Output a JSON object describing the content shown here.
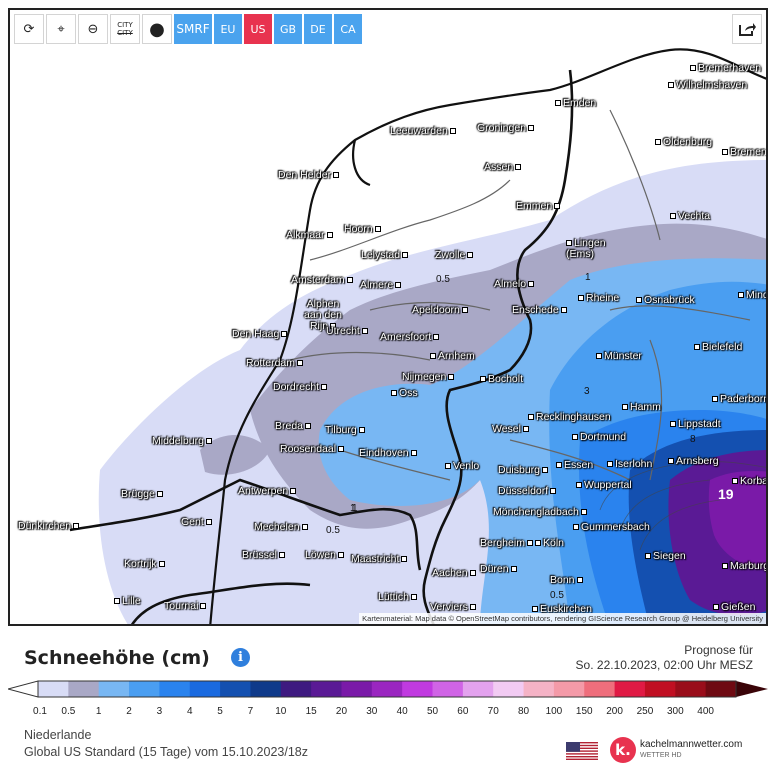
{
  "toolbar": {
    "model_label": "SMRF",
    "regions": [
      {
        "label": "EU",
        "active": false
      },
      {
        "label": "US",
        "active": true
      },
      {
        "label": "GB",
        "active": false
      },
      {
        "label": "DE",
        "active": false
      },
      {
        "label": "CA",
        "active": false
      }
    ],
    "city_toggle_label": "CITY",
    "icons": [
      "refresh-icon",
      "location-pin-icon",
      "zoom-out-icon",
      "city-toggle-icon",
      "balloon-icon",
      "share-icon"
    ]
  },
  "map": {
    "attribution": "Kartenmaterial: Map data © OpenStreetMap contributors, rendering GIScience Research Group @ Heidelberg University",
    "cities": [
      "Bremerhaven",
      "Wilhelmshaven",
      "Emden",
      "Leeuwarden",
      "Groningen",
      "Oldenburg",
      "Bremen",
      "Den Helder",
      "Assen",
      "Emmen",
      "Vechta",
      "Alkmaar",
      "Hoorn",
      "Lelystad",
      "Zwolle",
      "Lingen (Ems)",
      "Amsterdam",
      "Almere",
      "Almelo",
      "Rheine",
      "Osnabrück",
      "Minden",
      "Alphen aan den Rijn",
      "Apeldoorn",
      "Enschede",
      "Den Haag",
      "Utrecht",
      "Amersfoort",
      "Bielefeld",
      "Rotterdam",
      "Arnhem",
      "Münster",
      "Dordrecht",
      "Nijmegen",
      "Bocholt",
      "Oss",
      "Recklinghausen",
      "Hamm",
      "Paderborn",
      "Breda",
      "Tilburg",
      "Wesel",
      "Dortmund",
      "Lippstadt",
      "Middelburg",
      "Roosendaal",
      "Eindhoven",
      "Venlo",
      "Duisburg",
      "Essen",
      "Iserlohn",
      "Arnsberg",
      "Antwerpen",
      "Düsseldorf",
      "Wuppertal",
      "Korbach",
      "Brügge",
      "Gent",
      "Mechelen",
      "Mönchengladbach",
      "Gummersbach",
      "Dünkirchen",
      "Bergheim",
      "Köln",
      "Siegen",
      "Kortrijk",
      "Brüssel",
      "Löwen",
      "Maastricht",
      "Düren",
      "Marburg",
      "Aachen",
      "Bonn",
      "Lille",
      "Tournai",
      "Lüttich",
      "Verviers",
      "Euskirchen",
      "Gießen"
    ],
    "contour_labels": [
      "0.5",
      "1",
      "0.5",
      "3",
      "1",
      "0.5",
      "1",
      "8",
      "19"
    ]
  },
  "header": {
    "title": "Schneehöhe (cm)",
    "forecast_label": "Prognose für",
    "forecast_time": "So. 22.10.2023, 02:00 Uhr MESZ"
  },
  "legend": {
    "labels": [
      "0.1",
      "0.5",
      "1",
      "2",
      "3",
      "4",
      "5",
      "7",
      "10",
      "15",
      "20",
      "30",
      "40",
      "50",
      "60",
      "70",
      "80",
      "100",
      "150",
      "200",
      "250",
      "300",
      "400"
    ],
    "colors": [
      "#d8dcf6",
      "#a9a8c6",
      "#78b7f3",
      "#4a9ef1",
      "#2a83ee",
      "#1a6ae0",
      "#1450b0",
      "#0f3a8a",
      "#3e1a80",
      "#5a1a95",
      "#7a1aa8",
      "#9a26c0",
      "#c03ae0",
      "#d064e6",
      "#e3a2ee",
      "#f2cbf3",
      "#f5b3c6",
      "#f49aa8",
      "#ef6e7c",
      "#e01a44",
      "#c00f22",
      "#990d1a",
      "#6e0a12"
    ]
  },
  "footer": {
    "region": "Niederlande",
    "model_run": "Global US Standard (15 Tage) vom 15.10.2023/18z",
    "brand_name": "kachelmannwetter.com",
    "brand_sub": "WETTER HD",
    "brand_letter": "k."
  }
}
